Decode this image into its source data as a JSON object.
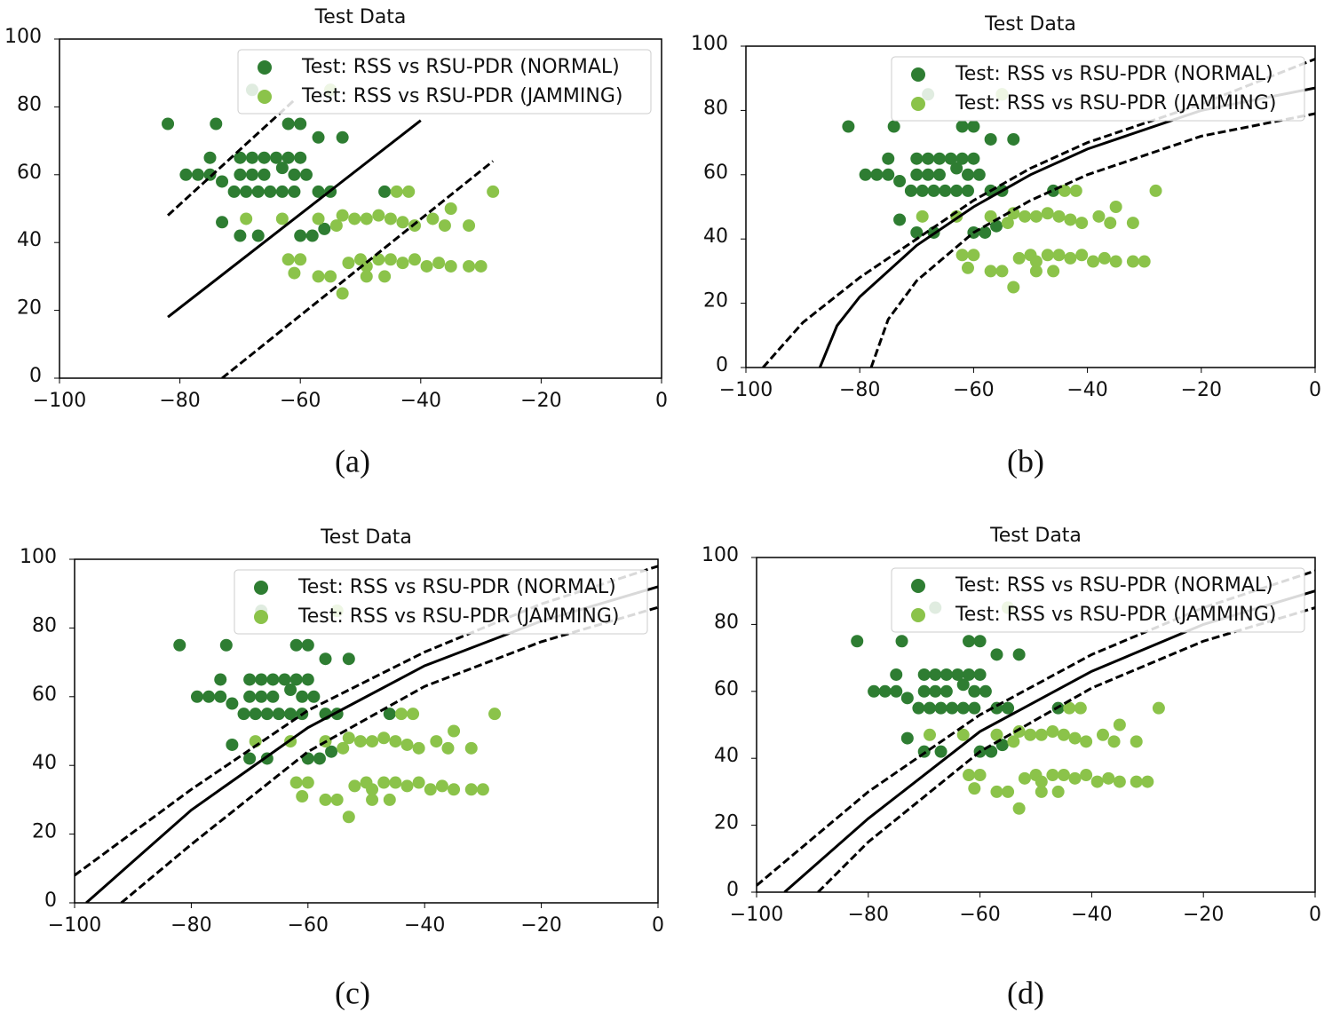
{
  "chart_data": [
    {
      "type": "scatter",
      "title": "Test Data",
      "caption": "(a)",
      "legend": "upper right",
      "xlim": [
        -100,
        0
      ],
      "ylim": [
        0,
        100
      ],
      "xticks": [
        {
          "value": -100,
          "label": "−100"
        },
        {
          "value": -80,
          "label": "−80"
        },
        {
          "value": -60,
          "label": "−60"
        },
        {
          "value": -40,
          "label": "−40"
        },
        {
          "value": -20,
          "label": "−20"
        },
        0
      ],
      "yticks": [
        0,
        20,
        40,
        60,
        80,
        100
      ],
      "series": [
        {
          "name": "Test: RSS vs RSU-PDR (NORMAL)",
          "color": "#2e7d32",
          "x": [
            -82,
            -74,
            -62,
            -60,
            -57,
            -53,
            -68,
            -55,
            -79,
            -77,
            -75,
            -73,
            -75,
            -70,
            -68,
            -66,
            -64,
            -62,
            -60,
            -70,
            -68,
            -66,
            -63,
            -61,
            -59,
            -71,
            -69,
            -67,
            -65,
            -63,
            -61,
            -57,
            -55,
            -73,
            -70,
            -67,
            -60,
            -58,
            -56,
            -46
          ],
          "y": [
            75,
            75,
            75,
            75,
            71,
            71,
            85,
            85,
            60,
            60,
            60,
            58,
            65,
            65,
            65,
            65,
            65,
            65,
            65,
            60,
            60,
            60,
            62,
            60,
            60,
            55,
            55,
            55,
            55,
            55,
            55,
            55,
            55,
            46,
            42,
            42,
            42,
            42,
            44,
            55
          ]
        },
        {
          "name": "Test: RSS vs RSU-PDR (JAMMING)",
          "color": "#8bc34a",
          "x": [
            -69,
            -63,
            -57,
            -54,
            -53,
            -51,
            -49,
            -47,
            -45,
            -43,
            -41,
            -38,
            -35,
            -36,
            -32,
            -44,
            -42,
            -28,
            -62,
            -60,
            -61,
            -57,
            -55,
            -52,
            -50,
            -49,
            -47,
            -45,
            -43,
            -41,
            -39,
            -37,
            -35,
            -32,
            -30,
            -53,
            -49,
            -46,
            -55
          ],
          "y": [
            47,
            47,
            47,
            45,
            48,
            47,
            47,
            48,
            47,
            46,
            45,
            47,
            50,
            45,
            45,
            55,
            55,
            55,
            35,
            35,
            31,
            30,
            30,
            34,
            35,
            33,
            35,
            35,
            34,
            35,
            33,
            34,
            33,
            33,
            33,
            25,
            30,
            30,
            85
          ]
        }
      ],
      "lines": [
        {
          "dash": false,
          "x": [
            -82,
            -40
          ],
          "y": [
            18,
            76
          ]
        },
        {
          "dash": true,
          "x": [
            -82,
            -61
          ],
          "y": [
            48,
            82
          ]
        },
        {
          "dash": true,
          "x": [
            -73,
            -28
          ],
          "y": [
            0,
            64
          ]
        }
      ]
    },
    {
      "type": "scatter",
      "title": "Test Data",
      "caption": "(b)",
      "legend": "upper right",
      "xlim": [
        -100,
        0
      ],
      "ylim": [
        0,
        100
      ],
      "xticks": [
        {
          "value": -100,
          "label": "−100"
        },
        {
          "value": -80,
          "label": "−80"
        },
        {
          "value": -60,
          "label": "−60"
        },
        {
          "value": -40,
          "label": "−40"
        },
        {
          "value": -20,
          "label": "−20"
        },
        0
      ],
      "yticks": [
        0,
        20,
        40,
        60,
        80,
        100
      ],
      "series": [
        {
          "name": "Test: RSS vs RSU-PDR (NORMAL)",
          "color": "#2e7d32",
          "x": [
            -82,
            -74,
            -62,
            -60,
            -57,
            -53,
            -68,
            -55,
            -79,
            -77,
            -75,
            -73,
            -75,
            -70,
            -68,
            -66,
            -64,
            -62,
            -60,
            -70,
            -68,
            -66,
            -63,
            -61,
            -59,
            -71,
            -69,
            -67,
            -65,
            -63,
            -61,
            -57,
            -55,
            -73,
            -70,
            -67,
            -60,
            -58,
            -56,
            -46
          ],
          "y": [
            75,
            75,
            75,
            75,
            71,
            71,
            85,
            85,
            60,
            60,
            60,
            58,
            65,
            65,
            65,
            65,
            65,
            65,
            65,
            60,
            60,
            60,
            62,
            60,
            60,
            55,
            55,
            55,
            55,
            55,
            55,
            55,
            55,
            46,
            42,
            42,
            42,
            42,
            44,
            55
          ]
        },
        {
          "name": "Test: RSS vs RSU-PDR (JAMMING)",
          "color": "#8bc34a",
          "x": [
            -69,
            -63,
            -57,
            -54,
            -53,
            -51,
            -49,
            -47,
            -45,
            -43,
            -41,
            -38,
            -35,
            -36,
            -32,
            -44,
            -42,
            -28,
            -62,
            -60,
            -61,
            -57,
            -55,
            -52,
            -50,
            -49,
            -47,
            -45,
            -43,
            -41,
            -39,
            -37,
            -35,
            -32,
            -30,
            -53,
            -49,
            -46,
            -55
          ],
          "y": [
            47,
            47,
            47,
            45,
            48,
            47,
            47,
            48,
            47,
            46,
            45,
            47,
            50,
            45,
            45,
            55,
            55,
            55,
            35,
            35,
            31,
            30,
            30,
            34,
            35,
            33,
            35,
            35,
            34,
            35,
            33,
            34,
            33,
            33,
            33,
            25,
            30,
            30,
            85
          ]
        }
      ],
      "lines": [
        {
          "dash": true,
          "x": [
            -97,
            -90,
            -80,
            -70,
            -60,
            -50,
            -40,
            -20,
            0
          ],
          "y": [
            0,
            14,
            28,
            40,
            52,
            62,
            70,
            82,
            96
          ]
        },
        {
          "dash": false,
          "x": [
            -87,
            -84,
            -80,
            -70,
            -60,
            -50,
            -40,
            -20,
            0
          ],
          "y": [
            0,
            13,
            22,
            38,
            50,
            60,
            68,
            80,
            87
          ]
        },
        {
          "dash": true,
          "x": [
            -78,
            -75,
            -70,
            -60,
            -50,
            -40,
            -20,
            0
          ],
          "y": [
            0,
            15,
            27,
            42,
            52,
            60,
            72,
            79
          ]
        }
      ]
    },
    {
      "type": "scatter",
      "title": "Test Data",
      "caption": "(c)",
      "legend": "upper right",
      "xlim": [
        -100,
        0
      ],
      "ylim": [
        0,
        100
      ],
      "xticks": [
        {
          "value": -100,
          "label": "−100"
        },
        {
          "value": -80,
          "label": "−80"
        },
        {
          "value": -60,
          "label": "−60"
        },
        {
          "value": -40,
          "label": "−40"
        },
        {
          "value": -20,
          "label": "−20"
        },
        0
      ],
      "yticks": [
        0,
        20,
        40,
        60,
        80,
        100
      ],
      "series": [
        {
          "name": "Test: RSS vs RSU-PDR (NORMAL)",
          "color": "#2e7d32",
          "x": [
            -82,
            -74,
            -62,
            -60,
            -57,
            -53,
            -68,
            -55,
            -79,
            -77,
            -75,
            -73,
            -75,
            -70,
            -68,
            -66,
            -64,
            -62,
            -60,
            -70,
            -68,
            -66,
            -63,
            -61,
            -59,
            -71,
            -69,
            -67,
            -65,
            -63,
            -61,
            -57,
            -55,
            -73,
            -70,
            -67,
            -60,
            -58,
            -56,
            -46
          ],
          "y": [
            75,
            75,
            75,
            75,
            71,
            71,
            85,
            85,
            60,
            60,
            60,
            58,
            65,
            65,
            65,
            65,
            65,
            65,
            65,
            60,
            60,
            60,
            62,
            60,
            60,
            55,
            55,
            55,
            55,
            55,
            55,
            55,
            55,
            46,
            42,
            42,
            42,
            42,
            44,
            55
          ]
        },
        {
          "name": "Test: RSS vs RSU-PDR (JAMMING)",
          "color": "#8bc34a",
          "x": [
            -69,
            -63,
            -57,
            -54,
            -53,
            -51,
            -49,
            -47,
            -45,
            -43,
            -41,
            -38,
            -35,
            -36,
            -32,
            -44,
            -42,
            -28,
            -62,
            -60,
            -61,
            -57,
            -55,
            -52,
            -50,
            -49,
            -47,
            -45,
            -43,
            -41,
            -39,
            -37,
            -35,
            -32,
            -30,
            -53,
            -49,
            -46,
            -55
          ],
          "y": [
            47,
            47,
            47,
            45,
            48,
            47,
            47,
            48,
            47,
            46,
            45,
            47,
            50,
            45,
            45,
            55,
            55,
            55,
            35,
            35,
            31,
            30,
            30,
            34,
            35,
            33,
            35,
            35,
            34,
            35,
            33,
            34,
            33,
            33,
            33,
            25,
            30,
            30,
            85
          ]
        }
      ],
      "lines": [
        {
          "dash": true,
          "x": [
            -100,
            -80,
            -60,
            -40,
            -20,
            0
          ],
          "y": [
            8,
            33,
            56,
            73,
            87,
            98
          ]
        },
        {
          "dash": false,
          "x": [
            -98,
            -90,
            -80,
            -60,
            -40,
            -20,
            0
          ],
          "y": [
            0,
            12,
            27,
            51,
            69,
            82,
            92
          ]
        },
        {
          "dash": true,
          "x": [
            -92,
            -80,
            -60,
            -40,
            -20,
            0
          ],
          "y": [
            0,
            17,
            44,
            63,
            76,
            86
          ]
        }
      ]
    },
    {
      "type": "scatter",
      "title": "Test Data",
      "caption": "(d)",
      "legend": "upper right",
      "xlim": [
        -100,
        0
      ],
      "ylim": [
        0,
        100
      ],
      "xticks": [
        {
          "value": -100,
          "label": "−100"
        },
        {
          "value": -80,
          "label": "−80"
        },
        {
          "value": -60,
          "label": "−60"
        },
        {
          "value": -40,
          "label": "−40"
        },
        {
          "value": -20,
          "label": "−20"
        },
        0
      ],
      "yticks": [
        0,
        20,
        40,
        60,
        80,
        100
      ],
      "series": [
        {
          "name": "Test: RSS vs RSU-PDR (NORMAL)",
          "color": "#2e7d32",
          "x": [
            -82,
            -74,
            -62,
            -60,
            -57,
            -53,
            -68,
            -55,
            -79,
            -77,
            -75,
            -73,
            -75,
            -70,
            -68,
            -66,
            -64,
            -62,
            -60,
            -70,
            -68,
            -66,
            -63,
            -61,
            -59,
            -71,
            -69,
            -67,
            -65,
            -63,
            -61,
            -57,
            -55,
            -73,
            -70,
            -67,
            -60,
            -58,
            -56,
            -46
          ],
          "y": [
            75,
            75,
            75,
            75,
            71,
            71,
            85,
            85,
            60,
            60,
            60,
            58,
            65,
            65,
            65,
            65,
            65,
            65,
            65,
            60,
            60,
            60,
            62,
            60,
            60,
            55,
            55,
            55,
            55,
            55,
            55,
            55,
            55,
            46,
            42,
            42,
            42,
            42,
            44,
            55
          ]
        },
        {
          "name": "Test: RSS vs RSU-PDR (JAMMING)",
          "color": "#8bc34a",
          "x": [
            -69,
            -63,
            -57,
            -54,
            -53,
            -51,
            -49,
            -47,
            -45,
            -43,
            -41,
            -38,
            -35,
            -36,
            -32,
            -44,
            -42,
            -28,
            -62,
            -60,
            -61,
            -57,
            -55,
            -52,
            -50,
            -49,
            -47,
            -45,
            -43,
            -41,
            -39,
            -37,
            -35,
            -32,
            -30,
            -53,
            -49,
            -46,
            -55
          ],
          "y": [
            47,
            47,
            47,
            45,
            48,
            47,
            47,
            48,
            47,
            46,
            45,
            47,
            50,
            45,
            45,
            55,
            55,
            55,
            35,
            35,
            31,
            30,
            30,
            34,
            35,
            33,
            35,
            35,
            34,
            35,
            33,
            34,
            33,
            33,
            33,
            25,
            30,
            30,
            85
          ]
        }
      ],
      "lines": [
        {
          "dash": true,
          "x": [
            -100,
            -80,
            -60,
            -40,
            -20,
            0
          ],
          "y": [
            2,
            30,
            53,
            71,
            85,
            96
          ]
        },
        {
          "dash": false,
          "x": [
            -95,
            -80,
            -60,
            -40,
            -20,
            0
          ],
          "y": [
            0,
            22,
            48,
            66,
            80,
            90
          ]
        },
        {
          "dash": true,
          "x": [
            -89,
            -80,
            -60,
            -40,
            -20,
            0
          ],
          "y": [
            0,
            15,
            42,
            61,
            75,
            85
          ]
        }
      ]
    }
  ]
}
